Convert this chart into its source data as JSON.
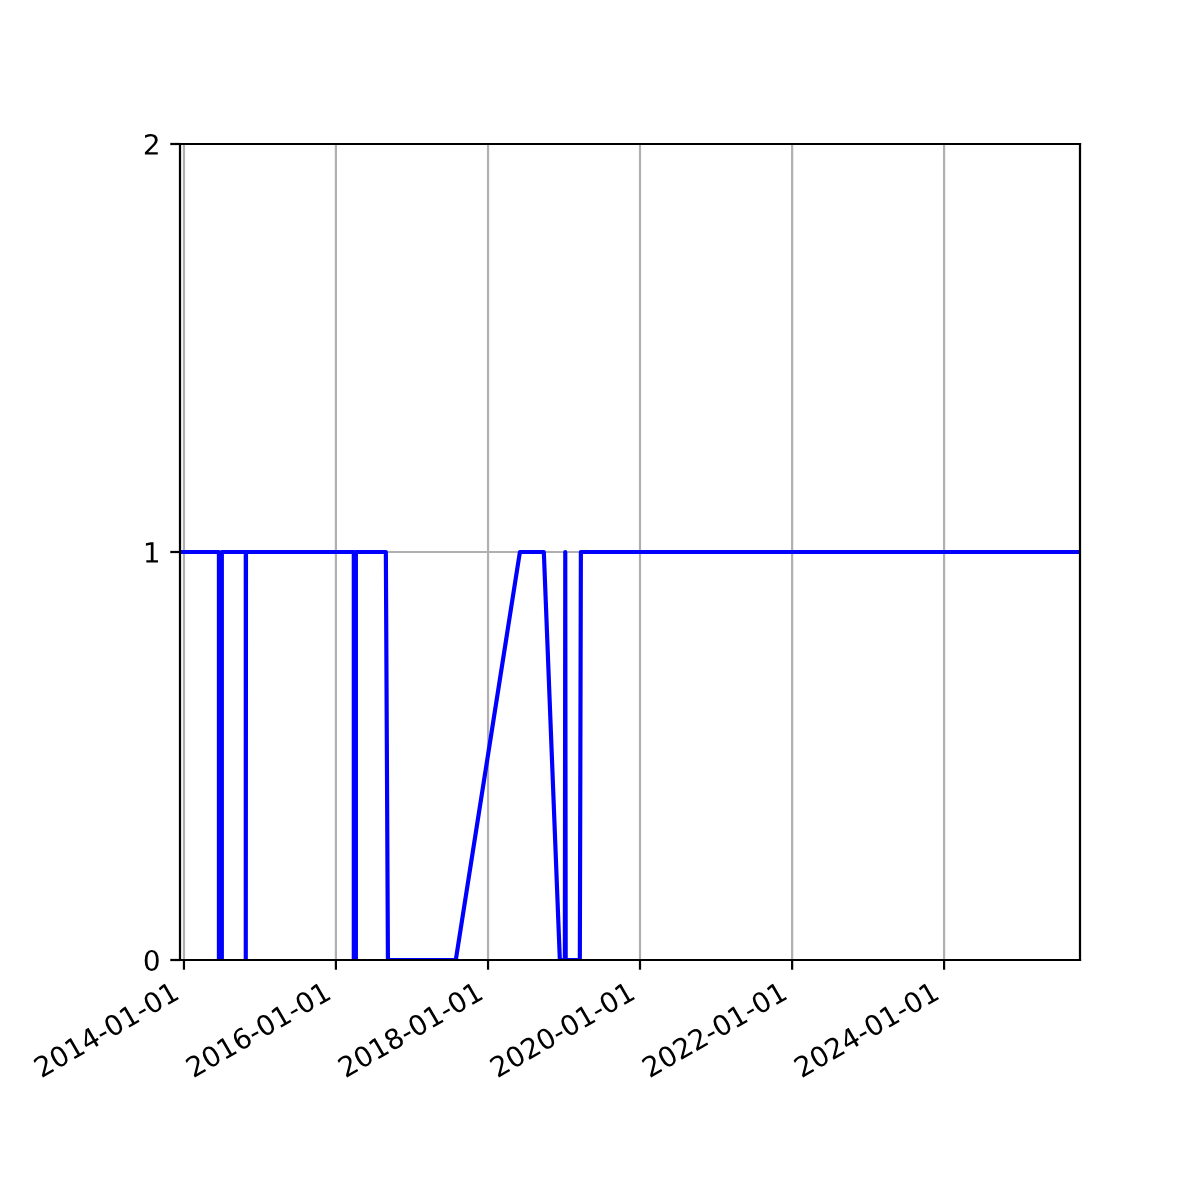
{
  "chart_data": {
    "type": "line",
    "x": [
      "2013-12-22",
      "2014-06-18",
      "2014-06-18",
      "2014-07-02",
      "2014-07-02",
      "2014-10-25",
      "2014-10-25",
      "2014-10-26",
      "2016-03-27",
      "2016-03-27",
      "2016-04-06",
      "2016-04-06",
      "2016-08-28",
      "2016-09-07",
      "2017-07-30",
      "2018-06-03",
      "2018-09-26",
      "2018-12-12",
      "2019-01-05",
      "2019-01-07",
      "2019-01-09",
      "2019-03-18",
      "2019-03-23",
      "2025-10-15"
    ],
    "series": [
      {
        "color": "#0000ff",
        "values": [
          1,
          1,
          0,
          0,
          1,
          1,
          0,
          1,
          1,
          0,
          0,
          1,
          1,
          0,
          0,
          1,
          1,
          0,
          0,
          1,
          0,
          0,
          1,
          1
        ]
      }
    ],
    "xlim": [
      "2013-12-13",
      "2025-10-15"
    ],
    "xticks": [
      "2014-01-01",
      "2016-01-01",
      "2018-01-01",
      "2020-01-01",
      "2022-01-01",
      "2024-01-01"
    ],
    "ylim": [
      0,
      2
    ],
    "yticks": [
      0,
      1,
      2
    ],
    "grid": true
  }
}
